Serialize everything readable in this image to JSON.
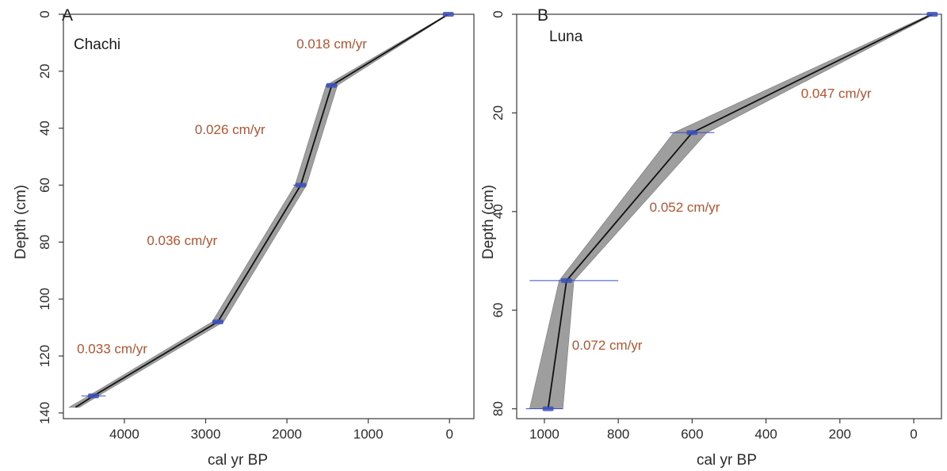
{
  "chart_data": [
    {
      "type": "line",
      "panel": "A",
      "site": "Chachi",
      "xlabel": "cal yr BP",
      "ylabel": "Depth (cm)",
      "xlim": [
        4750,
        -300
      ],
      "ylim": [
        0,
        142
      ],
      "x_ticks": [
        4000,
        3000,
        2000,
        1000,
        0
      ],
      "y_ticks": [
        0,
        20,
        40,
        60,
        80,
        100,
        120,
        140
      ],
      "series": [
        {
          "x": [
            15,
            1450,
            1830,
            2850,
            4380,
            4600
          ],
          "y": [
            0,
            25,
            60,
            108,
            134,
            138
          ],
          "band_low": [
            5,
            1380,
            1760,
            2780,
            4320,
            4550
          ],
          "band_high": [
            25,
            1520,
            1900,
            2920,
            4440,
            4680
          ]
        }
      ],
      "date_markers": [
        {
          "age": 15,
          "depth": 0,
          "range": [
            -10,
            35
          ]
        },
        {
          "age": 1450,
          "depth": 25,
          "range": [
            1380,
            1520
          ]
        },
        {
          "age": 1830,
          "depth": 60,
          "range": [
            1760,
            1920
          ]
        },
        {
          "age": 2850,
          "depth": 108,
          "range": [
            2790,
            2920
          ]
        },
        {
          "age": 4380,
          "depth": 134,
          "range": [
            4230,
            4530
          ]
        }
      ],
      "annotations": [
        {
          "text": "0.018 cm/yr",
          "x": 1450,
          "y": 12
        },
        {
          "text": "0.026 cm/yr",
          "x": 2700,
          "y": 42
        },
        {
          "text": "0.036 cm/yr",
          "x": 3290,
          "y": 81
        },
        {
          "text": "0.033 cm/yr",
          "x": 4150,
          "y": 119
        }
      ],
      "line_color": "#111111",
      "band_color": "#9e9e9e",
      "marker_color": "#3b4fb8",
      "label_color": "#b5532f"
    },
    {
      "type": "line",
      "panel": "B",
      "site": "Luna",
      "xlabel": "cal yr BP",
      "ylabel": "Depth (cm)",
      "xlim": [
        1075,
        -75
      ],
      "ylim": [
        0,
        82
      ],
      "x_ticks": [
        1000,
        800,
        600,
        400,
        200,
        0
      ],
      "y_ticks": [
        0,
        20,
        40,
        60,
        80
      ],
      "series": [
        {
          "x": [
            -50,
            600,
            940,
            990
          ],
          "y": [
            0,
            24,
            54,
            80
          ],
          "band_low": [
            -55,
            560,
            920,
            950
          ],
          "band_high": [
            -45,
            650,
            960,
            1040
          ]
        }
      ],
      "date_markers": [
        {
          "age": -50,
          "depth": 0,
          "range": [
            -75,
            -20
          ]
        },
        {
          "age": 600,
          "depth": 24,
          "range": [
            540,
            660
          ]
        },
        {
          "age": 940,
          "depth": 54,
          "range": [
            800,
            1040
          ]
        },
        {
          "age": 990,
          "depth": 80,
          "range": [
            950,
            1050
          ]
        }
      ],
      "annotations": [
        {
          "text": "0.047 cm/yr",
          "x": 210,
          "y": 17
        },
        {
          "text": "0.052 cm/yr",
          "x": 620,
          "y": 40
        },
        {
          "text": "0.072 cm/yr",
          "x": 830,
          "y": 68
        }
      ],
      "line_color": "#111111",
      "band_color": "#9e9e9e",
      "marker_color": "#3b4fb8",
      "label_color": "#b5532f"
    }
  ]
}
